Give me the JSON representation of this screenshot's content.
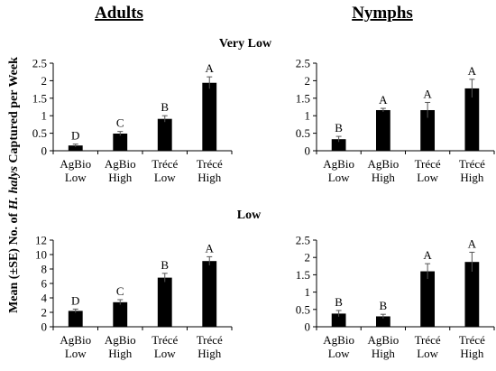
{
  "ylabel": "Mean (±SE) No. of H. halys Captured per Week",
  "headers": {
    "left": "Adults",
    "right": "Nymphs"
  },
  "rows": {
    "top": "Very Low",
    "bottom": "Low"
  },
  "chart_data": [
    {
      "type": "bar",
      "panel": "Adults / Very Low",
      "categories": [
        [
          "AgBio",
          "Low"
        ],
        [
          "AgBio",
          "High"
        ],
        [
          "Trécé",
          "Low"
        ],
        [
          "Trécé",
          "High"
        ]
      ],
      "values": [
        0.15,
        0.49,
        0.91,
        1.94
      ],
      "errors": [
        0.04,
        0.06,
        0.09,
        0.17
      ],
      "letters": [
        "D",
        "C",
        "B",
        "A"
      ],
      "ylim": [
        0,
        2.5
      ],
      "yticks": [
        "0",
        "0.5",
        "1",
        "1.5",
        "2",
        "2.5"
      ]
    },
    {
      "type": "bar",
      "panel": "Nymphs / Very Low",
      "categories": [
        [
          "AgBio",
          "Low"
        ],
        [
          "AgBio",
          "High"
        ],
        [
          "Trécé",
          "Low"
        ],
        [
          "Trécé",
          "High"
        ]
      ],
      "values": [
        0.33,
        1.16,
        1.16,
        1.78
      ],
      "errors": [
        0.08,
        0.05,
        0.22,
        0.26
      ],
      "letters": [
        "B",
        "A",
        "A",
        "A"
      ],
      "ylim": [
        0,
        2.5
      ],
      "yticks": [
        "0",
        "0.5",
        "1",
        "1.5",
        "2",
        "2.5"
      ]
    },
    {
      "type": "bar",
      "panel": "Adults / Low",
      "categories": [
        [
          "AgBio",
          "Low"
        ],
        [
          "AgBio",
          "High"
        ],
        [
          "Trécé",
          "Low"
        ],
        [
          "Trécé",
          "High"
        ]
      ],
      "values": [
        2.2,
        3.4,
        6.8,
        9.1
      ],
      "errors": [
        0.25,
        0.35,
        0.6,
        0.6
      ],
      "letters": [
        "D",
        "C",
        "B",
        "A"
      ],
      "ylim": [
        0,
        12
      ],
      "yticks": [
        "0",
        "2",
        "4",
        "6",
        "8",
        "10",
        "12"
      ]
    },
    {
      "type": "bar",
      "panel": "Nymphs / Low",
      "categories": [
        [
          "AgBio",
          "Low"
        ],
        [
          "AgBio",
          "High"
        ],
        [
          "Trécé",
          "Low"
        ],
        [
          "Trécé",
          "High"
        ]
      ],
      "values": [
        0.38,
        0.3,
        1.6,
        1.87
      ],
      "errors": [
        0.09,
        0.06,
        0.22,
        0.28
      ],
      "letters": [
        "B",
        "B",
        "A",
        "A"
      ],
      "ylim": [
        0,
        2.5
      ],
      "yticks": [
        "0",
        "0.5",
        "1",
        "1.5",
        "2",
        "2.5"
      ]
    }
  ]
}
